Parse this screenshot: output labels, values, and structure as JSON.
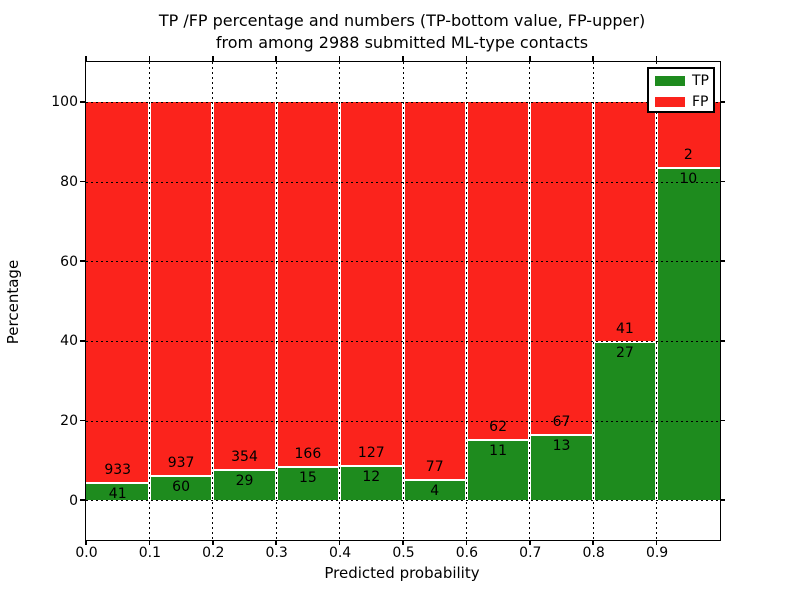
{
  "title": {
    "line1": "TP /FP percentage and numbers (TP-bottom value, FP-upper)",
    "line2": "from among 2988 submitted ML-type contacts"
  },
  "axes": {
    "xlabel": "Predicted probability",
    "ylabel": "Percentage"
  },
  "legend": {
    "position": "upper right",
    "entries": [
      {
        "label": "TP",
        "color": "#1e8b1e"
      },
      {
        "label": "FP",
        "color": "#fb231c"
      }
    ]
  },
  "chart_data": {
    "type": "bar",
    "stacked": true,
    "normalized": "each bar totals 100%",
    "title": "TP /FP percentage and numbers (TP-bottom value, FP-upper) from among 2988 submitted ML-type contacts",
    "xlabel": "Predicted probability",
    "ylabel": "Percentage",
    "categories": [
      "0.0",
      "0.1",
      "0.2",
      "0.3",
      "0.4",
      "0.5",
      "0.6",
      "0.7",
      "0.8",
      "0.9"
    ],
    "bin_width": 0.1,
    "series": [
      {
        "name": "TP",
        "color": "#1e8b1e",
        "values": [
          41,
          60,
          29,
          15,
          12,
          4,
          11,
          13,
          27,
          10
        ]
      },
      {
        "name": "FP",
        "color": "#fb231c",
        "values": [
          933,
          937,
          354,
          166,
          127,
          77,
          62,
          67,
          41,
          2
        ]
      }
    ],
    "tp_percent_of_bin": [
      4.21,
      6.02,
      7.57,
      8.29,
      8.63,
      4.94,
      15.07,
      16.25,
      39.71,
      83.33
    ],
    "total_contacts": 2988,
    "xlim": [
      0.0,
      1.0
    ],
    "ylim": [
      -10,
      110
    ],
    "xticks": [
      "0.0",
      "0.1",
      "0.2",
      "0.3",
      "0.4",
      "0.5",
      "0.6",
      "0.7",
      "0.8",
      "0.9"
    ],
    "yticks": [
      0,
      20,
      40,
      60,
      80,
      100
    ],
    "grid": "dotted black, on top of bars",
    "bar_edge_color": "#ffffff",
    "legend_position": "upper right",
    "value_labels": "FP count above segment boundary, TP count below segment boundary"
  }
}
